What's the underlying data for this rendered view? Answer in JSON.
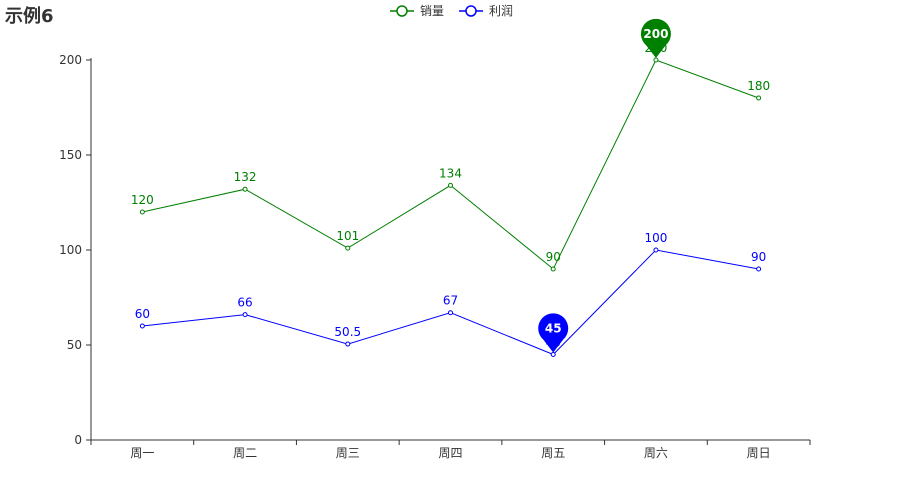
{
  "title": "示例6",
  "chart_data": {
    "type": "line",
    "title": "示例6",
    "categories": [
      "周一",
      "周二",
      "周三",
      "周四",
      "周五",
      "周六",
      "周日"
    ],
    "ylim": [
      0,
      200
    ],
    "yticks": [
      0,
      50,
      100,
      150,
      200
    ],
    "grid": false,
    "legend": "top-center",
    "series": [
      {
        "name": "销量",
        "color": "#008000",
        "values": [
          120,
          132,
          101,
          134,
          90,
          200,
          180
        ],
        "labels": [
          "120",
          "132",
          "101",
          "134",
          "90",
          "200",
          "180"
        ],
        "mark_point": {
          "type": "max",
          "value": 200,
          "label": "200",
          "index": 5
        }
      },
      {
        "name": "利润",
        "color": "#0000ff",
        "values": [
          60,
          66,
          50.5,
          67,
          45,
          100,
          90
        ],
        "labels": [
          "60",
          "66",
          "50.5",
          "67",
          "45",
          "100",
          "90"
        ],
        "mark_point": {
          "type": "min",
          "value": 45,
          "label": "45",
          "index": 4
        }
      }
    ]
  }
}
